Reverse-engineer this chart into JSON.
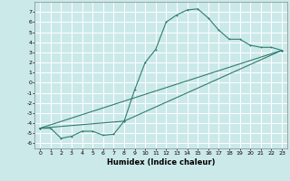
{
  "title": "",
  "xlabel": "Humidex (Indice chaleur)",
  "xlim": [
    -0.5,
    23.5
  ],
  "ylim": [
    -6.5,
    8.0
  ],
  "xticks": [
    0,
    1,
    2,
    3,
    4,
    5,
    6,
    7,
    8,
    9,
    10,
    11,
    12,
    13,
    14,
    15,
    16,
    17,
    18,
    19,
    20,
    21,
    22,
    23
  ],
  "yticks": [
    -6,
    -5,
    -4,
    -3,
    -2,
    -1,
    0,
    1,
    2,
    3,
    4,
    5,
    6,
    7
  ],
  "bg_color": "#cce9e9",
  "grid_color": "#ffffff",
  "line_color": "#2e7d6e",
  "line1_x": [
    0,
    1,
    2,
    3,
    4,
    5,
    6,
    7,
    8,
    9,
    10,
    11,
    12,
    13,
    14,
    15,
    16,
    17,
    18,
    19,
    20,
    21,
    22,
    23
  ],
  "line1_y": [
    -4.5,
    -4.5,
    -5.5,
    -5.3,
    -4.8,
    -4.8,
    -5.2,
    -5.1,
    -3.8,
    -0.7,
    2.0,
    3.3,
    6.0,
    6.7,
    7.2,
    7.3,
    6.4,
    5.2,
    4.3,
    4.3,
    3.7,
    3.5,
    3.5,
    3.2
  ],
  "line2_x": [
    0,
    23
  ],
  "line2_y": [
    -4.5,
    3.2
  ],
  "line3_x": [
    0,
    8,
    23
  ],
  "line3_y": [
    -4.5,
    -3.8,
    3.2
  ],
  "xlabel_fontsize": 6,
  "tick_fontsize": 4.5,
  "line_width": 0.8,
  "marker_size": 2.0
}
